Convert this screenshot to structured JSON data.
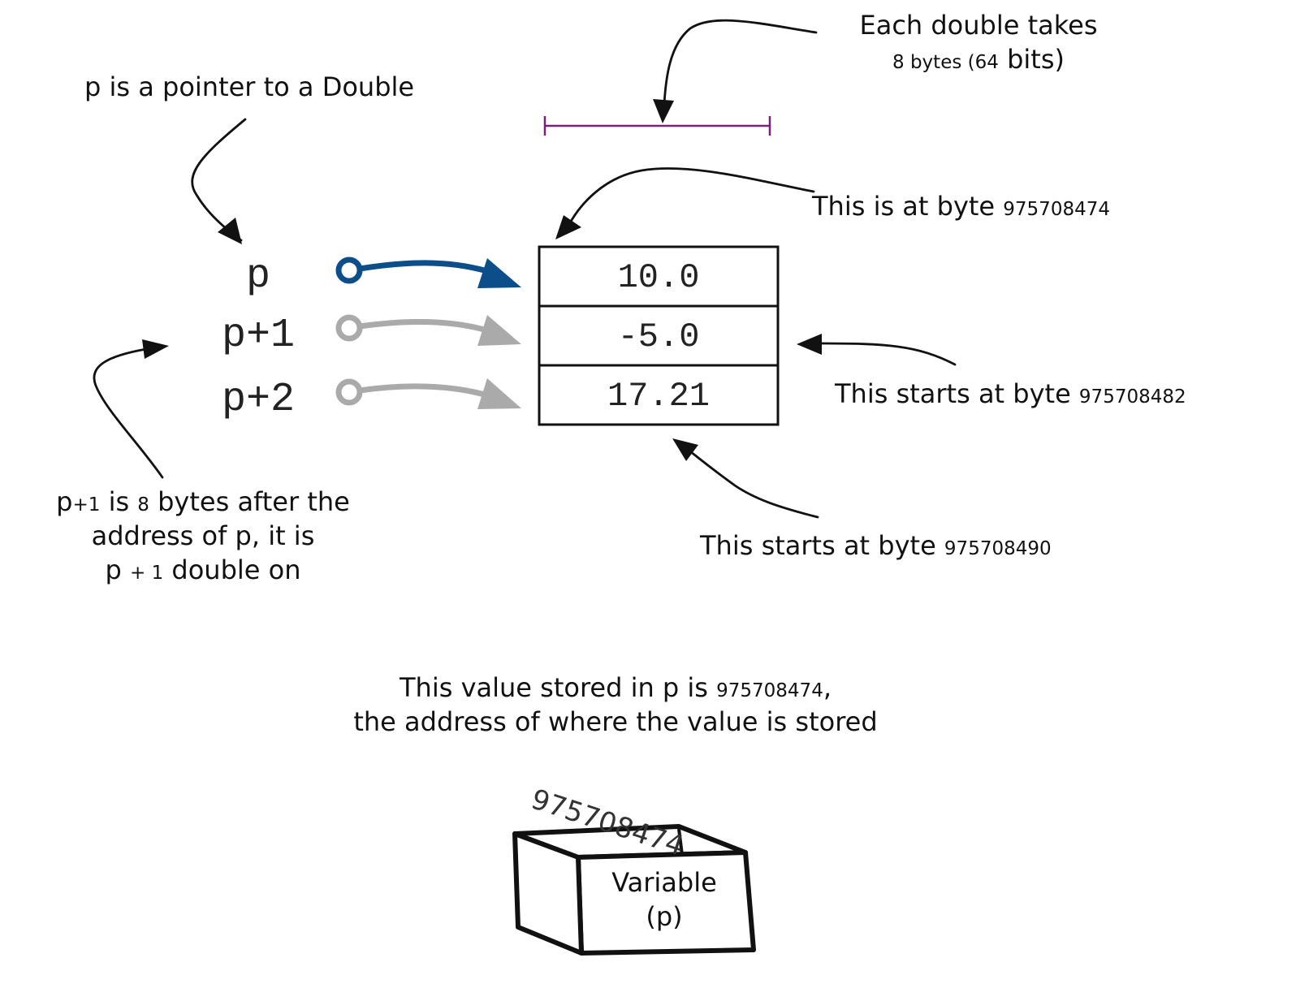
{
  "pointers": [
    {
      "label": "p",
      "color": "#0b4e8a"
    },
    {
      "label": "p+1",
      "color": "#aaaaaa"
    },
    {
      "label": "p+2",
      "color": "#aaaaaa"
    }
  ],
  "memory_cells": [
    "10.0",
    "-5.0",
    "17.21"
  ],
  "annotations": {
    "pointer_to_double": "p is a pointer to a Double",
    "each_double_line1": "Each double takes",
    "each_double_line2_a": "8 bytes (",
    "each_double_line2_num": "64",
    "each_double_line2_b": " bits)",
    "at_byte_text": "This is at byte ",
    "at_byte_num": "975708474",
    "starts_byte_2_text": "This starts at byte ",
    "starts_byte_2_num": "975708482",
    "starts_byte_3_text": "This starts at byte ",
    "starts_byte_3_num": "975708490",
    "p_plus_1_line1_a": "p",
    "p_plus_1_line1_b": "+1",
    "p_plus_1_line1_c": " is ",
    "p_plus_1_line1_d": "8",
    "p_plus_1_line1_e": " bytes after the",
    "p_plus_1_line2": "address of p, it is",
    "p_plus_1_line3_a": "p ",
    "p_plus_1_line3_b": "+ 1",
    "p_plus_1_line3_c": " double on"
  },
  "value_note": {
    "line1_text": "This value stored in p is ",
    "line1_num": "975708474",
    "line1_end": ",",
    "line2": "the address of where the value is stored"
  },
  "variable_box": {
    "stored_value": "975708474",
    "label_line1": "Variable",
    "label_line2": "(p)"
  },
  "colors": {
    "pointer_primary": "#0b4e8a",
    "pointer_secondary": "#aaaaaa",
    "byte_span": "#7a1f7a"
  }
}
